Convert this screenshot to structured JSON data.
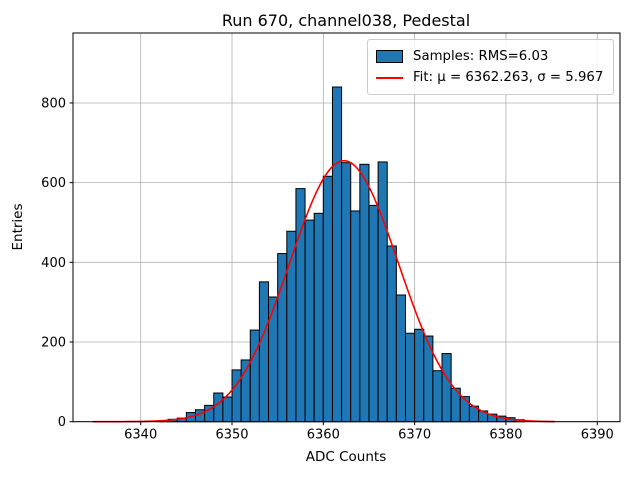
{
  "figure": {
    "title": "Run 670, channel038, Pedestal",
    "xlabel": "ADC Counts",
    "ylabel": "Entries"
  },
  "legend": {
    "samples_label": "Samples: RMS=6.03",
    "fit_label": "Fit: μ = 6362.263, σ = 5.967"
  },
  "colors": {
    "background": "#ffffff",
    "bar_fill": "#1f77b4",
    "bar_edge": "#000000",
    "fit_line": "#ff0000",
    "grid": "#b0b0b0",
    "spine": "#000000",
    "legend_border": "#cccccc",
    "text": "#000000"
  },
  "chart_data": {
    "type": "bar",
    "subtype": "histogram",
    "title": "Run 670, channel038, Pedestal",
    "xlabel": "ADC Counts",
    "ylabel": "Entries",
    "bin_width": 1,
    "first_bin_left_edge": 6342,
    "bin_left_edges": [
      6342,
      6343,
      6344,
      6345,
      6346,
      6347,
      6348,
      6349,
      6350,
      6351,
      6352,
      6353,
      6354,
      6355,
      6356,
      6357,
      6358,
      6359,
      6360,
      6361,
      6362,
      6363,
      6364,
      6365,
      6366,
      6367,
      6368,
      6369,
      6370,
      6371,
      6372,
      6373,
      6374,
      6375,
      6376,
      6377,
      6378,
      6379,
      6380,
      6381
    ],
    "values": [
      3,
      6,
      9,
      23,
      30,
      41,
      72,
      62,
      130,
      155,
      230,
      351,
      313,
      422,
      478,
      585,
      506,
      523,
      616,
      840,
      650,
      529,
      646,
      543,
      652,
      441,
      318,
      222,
      232,
      215,
      128,
      171,
      84,
      63,
      39,
      27,
      19,
      14,
      10,
      5
    ],
    "rms": 6.03,
    "fit": {
      "shape": "gaussian",
      "mu": 6362.263,
      "sigma": 5.967,
      "amplitude": 655,
      "x_start": 6334.8,
      "x_end": 6385.3
    },
    "xticks": [
      6340,
      6350,
      6360,
      6370,
      6380,
      6390
    ],
    "yticks": [
      0,
      200,
      400,
      600,
      800
    ],
    "xlim": [
      6332.6,
      6392.5
    ],
    "ylim": [
      0,
      975
    ],
    "grid": true,
    "legend_position": "upper right"
  }
}
